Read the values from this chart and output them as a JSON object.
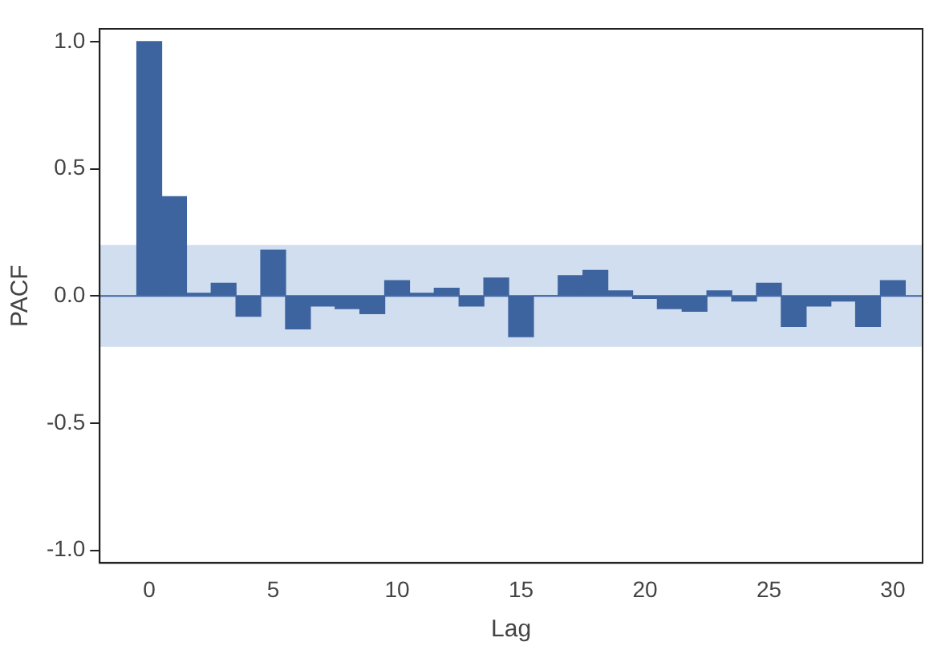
{
  "chart_data": {
    "type": "bar",
    "xlabel": "Lag",
    "ylabel": "PACF",
    "x": [
      0,
      1,
      2,
      3,
      4,
      5,
      6,
      7,
      8,
      9,
      10,
      11,
      12,
      13,
      14,
      15,
      16,
      17,
      18,
      19,
      20,
      21,
      22,
      23,
      24,
      25,
      26,
      27,
      28,
      29,
      30
    ],
    "values": [
      1.0,
      0.39,
      0.01,
      0.05,
      -0.08,
      0.18,
      -0.13,
      -0.04,
      -0.05,
      -0.07,
      0.06,
      0.01,
      0.03,
      -0.04,
      0.07,
      -0.16,
      0.0,
      0.08,
      0.1,
      0.02,
      -0.01,
      -0.05,
      -0.06,
      0.02,
      -0.02,
      0.05,
      -0.12,
      -0.04,
      -0.02,
      -0.12,
      0.06
    ],
    "color": "#3e64a0",
    "xlim": [
      -2,
      31.2
    ],
    "xticks": [
      0,
      5,
      10,
      15,
      20,
      25,
      30
    ],
    "ylim": [
      -1.05,
      1.05
    ],
    "yticks": [
      {
        "value": -1,
        "label": "-1.0"
      },
      {
        "value": -0.5,
        "label": "-0.5"
      },
      {
        "value": 0,
        "label": "0.0"
      },
      {
        "value": 0.5,
        "label": "0.5"
      },
      {
        "value": 1,
        "label": "1.0"
      }
    ],
    "ref_lines": [
      {
        "axis": "y",
        "value": 0,
        "color": "#3e64a0"
      }
    ],
    "bands": [
      {
        "axis": "y",
        "from": -0.2,
        "to": 0.2,
        "color": "#c5d6ec"
      }
    ],
    "grid": false,
    "legend": false
  }
}
